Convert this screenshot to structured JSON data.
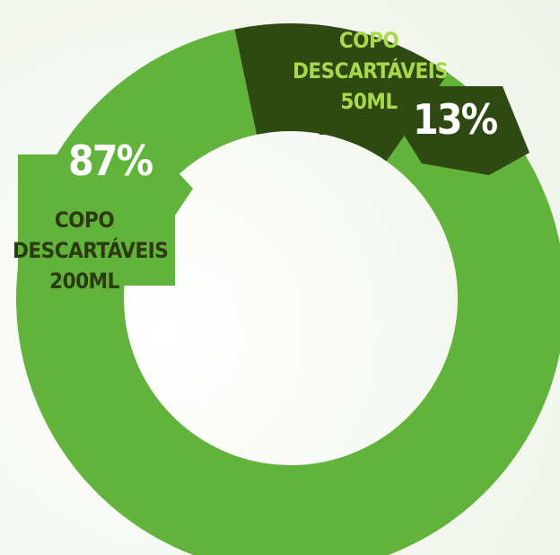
{
  "chart_data": {
    "type": "donut",
    "categories": [
      "COPO DESCARTÁVEIS 200ML",
      "COPO DESCARTÁVEIS 50ML"
    ],
    "values": [
      87,
      13
    ],
    "value_labels": [
      "87%",
      "13%"
    ],
    "colors": [
      "#62b33b",
      "#2e4a12"
    ],
    "label_colors": [
      "#2b3a10",
      "#a8d84c"
    ]
  }
}
